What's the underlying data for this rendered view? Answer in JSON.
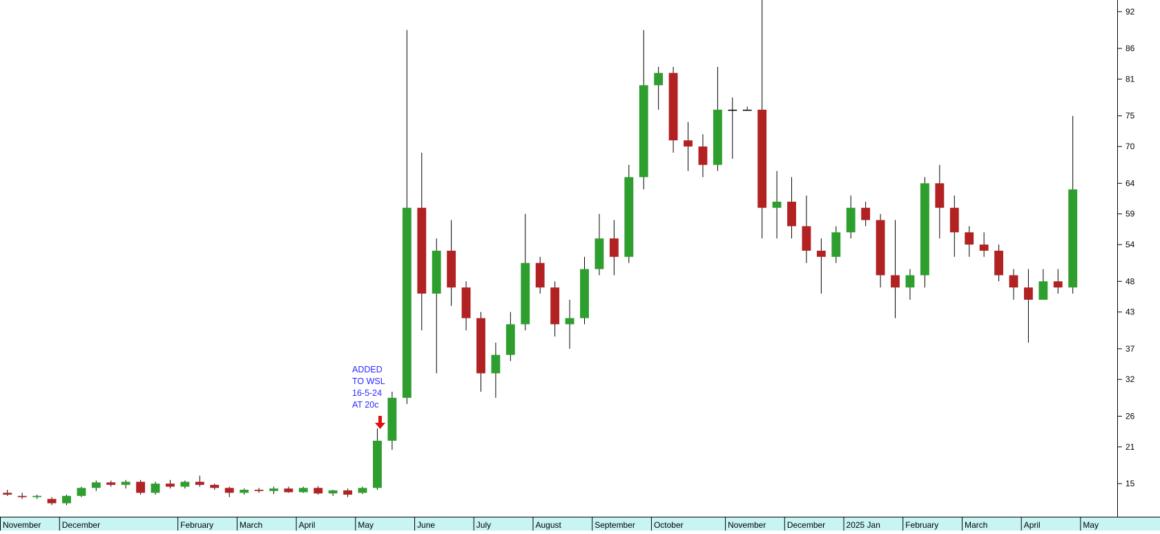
{
  "chart_data": {
    "type": "candlestick",
    "up_color": "#2e9e2e",
    "down_color": "#b22222",
    "wick_color": "#000000",
    "ylim": [
      9.6,
      93.9
    ],
    "yticks": [
      15,
      21,
      26,
      32,
      37,
      43,
      48,
      54,
      59,
      64,
      70,
      75,
      81,
      86,
      92
    ],
    "annotation": [
      "ADDED",
      "TO WSL",
      "16-5-24",
      "AT 20c"
    ],
    "categories": [
      "November",
      "December",
      "February",
      "March",
      "April",
      "May",
      "June",
      "July",
      "August",
      "September",
      "October",
      "November",
      "December",
      "2025 Jan",
      "February",
      "March",
      "April",
      "May"
    ],
    "candles": [
      {
        "open": [
          13.5,
          13,
          12.8,
          12.5
        ],
        "high": [
          14,
          13.5,
          13.2,
          12.8
        ],
        "low": [
          13,
          12.5,
          12.5,
          11.5
        ],
        "close": [
          13.2,
          12.8,
          13.0,
          11.8
        ]
      },
      {
        "open": [
          11.8,
          13,
          14.3,
          15.2,
          14.8,
          15.3,
          13.5,
          15.0
        ],
        "high": [
          13.2,
          14.5,
          15.5,
          15.5,
          15.6,
          15.6,
          15.3,
          15.6
        ],
        "low": [
          11.5,
          12.8,
          13.8,
          14.5,
          14.2,
          13.2,
          13.2,
          14.2
        ],
        "close": [
          13,
          14.3,
          15.2,
          14.8,
          15.3,
          13.5,
          15.0,
          14.5
        ]
      },
      {
        "open": [
          14.5,
          15.3,
          14.8,
          14.3
        ],
        "high": [
          15.5,
          16.3,
          15,
          14.5
        ],
        "low": [
          14.2,
          14.5,
          14,
          12.8
        ],
        "close": [
          15.3,
          14.8,
          14.3,
          13.5
        ]
      },
      {
        "open": [
          13.5,
          14,
          13.8,
          14.2
        ],
        "high": [
          14.2,
          14.3,
          14.5,
          14.5
        ],
        "low": [
          13.2,
          13.5,
          13.3,
          13.5
        ],
        "close": [
          14.0,
          13.8,
          14.2,
          13.6
        ]
      },
      {
        "open": [
          13.6,
          14.3,
          13.4,
          13.9
        ],
        "high": [
          14.5,
          14.6,
          14,
          14.2
        ],
        "low": [
          13.5,
          13.2,
          13,
          12.8
        ],
        "close": [
          14.3,
          13.4,
          13.9,
          13.2
        ]
      },
      {
        "open": [
          13.5,
          14.3,
          22,
          29
        ],
        "high": [
          14.5,
          24,
          30,
          89
        ],
        "low": [
          13.3,
          14,
          20.5,
          28
        ],
        "close": [
          14.3,
          22,
          29,
          60
        ]
      },
      {
        "open": [
          60,
          46,
          53,
          47
        ],
        "high": [
          69,
          55,
          58,
          48
        ],
        "low": [
          40,
          33,
          44,
          40
        ],
        "close": [
          46,
          53,
          47,
          42
        ]
      },
      {
        "open": [
          42,
          33,
          36,
          41
        ],
        "high": [
          43,
          38,
          43,
          59
        ],
        "low": [
          30,
          29,
          35,
          40
        ],
        "close": [
          33,
          36,
          41,
          51
        ]
      },
      {
        "open": [
          51,
          47,
          41,
          42
        ],
        "high": [
          52,
          48,
          45,
          52
        ],
        "low": [
          46,
          39,
          37,
          41
        ],
        "close": [
          47,
          41,
          42,
          50
        ]
      },
      {
        "open": [
          50,
          55,
          52,
          65
        ],
        "high": [
          59,
          58,
          67,
          89
        ],
        "low": [
          49,
          49,
          51,
          63
        ],
        "close": [
          55,
          52,
          65,
          80
        ]
      },
      {
        "open": [
          80,
          82,
          71,
          70,
          67
        ],
        "high": [
          83,
          83,
          74,
          72,
          83
        ],
        "low": [
          76,
          69,
          66,
          65,
          66
        ],
        "close": [
          82,
          71,
          70,
          67,
          76
        ]
      },
      {
        "open": [
          76,
          76,
          76,
          60
        ],
        "high": [
          78,
          76.5,
          94,
          66
        ],
        "low": [
          68,
          76,
          55,
          55
        ],
        "close": [
          76,
          76,
          60,
          61
        ]
      },
      {
        "open": [
          61,
          57,
          53,
          52
        ],
        "high": [
          65,
          62,
          55,
          57
        ],
        "low": [
          55,
          51,
          46,
          51
        ],
        "close": [
          57,
          53,
          52,
          56
        ]
      },
      {
        "open": [
          56,
          60,
          58,
          49
        ],
        "high": [
          62,
          61,
          59,
          58
        ],
        "low": [
          55,
          57,
          47,
          42
        ],
        "close": [
          60,
          58,
          49,
          47
        ]
      },
      {
        "open": [
          47,
          49,
          64,
          60
        ],
        "high": [
          50,
          65,
          67,
          62
        ],
        "low": [
          45,
          47,
          55,
          52
        ],
        "close": [
          49,
          64,
          60,
          56
        ]
      },
      {
        "open": [
          56,
          54,
          53,
          49
        ],
        "high": [
          57,
          56,
          54,
          50
        ],
        "low": [
          52,
          52,
          48,
          45
        ],
        "close": [
          54,
          53,
          49,
          47
        ]
      },
      {
        "open": [
          47,
          45,
          48,
          47
        ],
        "high": [
          50,
          50,
          50,
          75
        ],
        "low": [
          38,
          45,
          46,
          46
        ],
        "close": [
          45,
          48,
          47,
          63
        ]
      },
      {
        "open": [],
        "high": [],
        "low": [],
        "close": []
      }
    ]
  }
}
